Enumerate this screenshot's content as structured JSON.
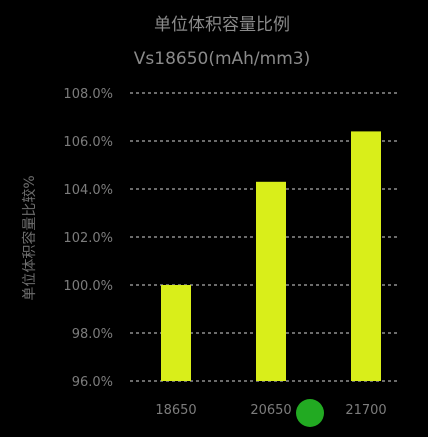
{
  "chart_data": {
    "type": "bar",
    "title": "单位体积容量比例",
    "subtitle": "Vs18650(mAh/mm3)",
    "ylabel": "单位体积容量比较%",
    "xlabel": "",
    "categories": [
      "18650",
      "20650",
      "21700"
    ],
    "values": [
      100.0,
      104.3,
      106.4
    ],
    "yticks": [
      "96.0%",
      "98.0%",
      "100.0%",
      "102.0%",
      "104.0%",
      "106.0%",
      "108.0%"
    ],
    "ylim": [
      96,
      108
    ],
    "grid": true,
    "legend": "none",
    "colors": {
      "bar": "#d9ee1a",
      "background": "#000000",
      "marker": "#22aa22"
    }
  }
}
